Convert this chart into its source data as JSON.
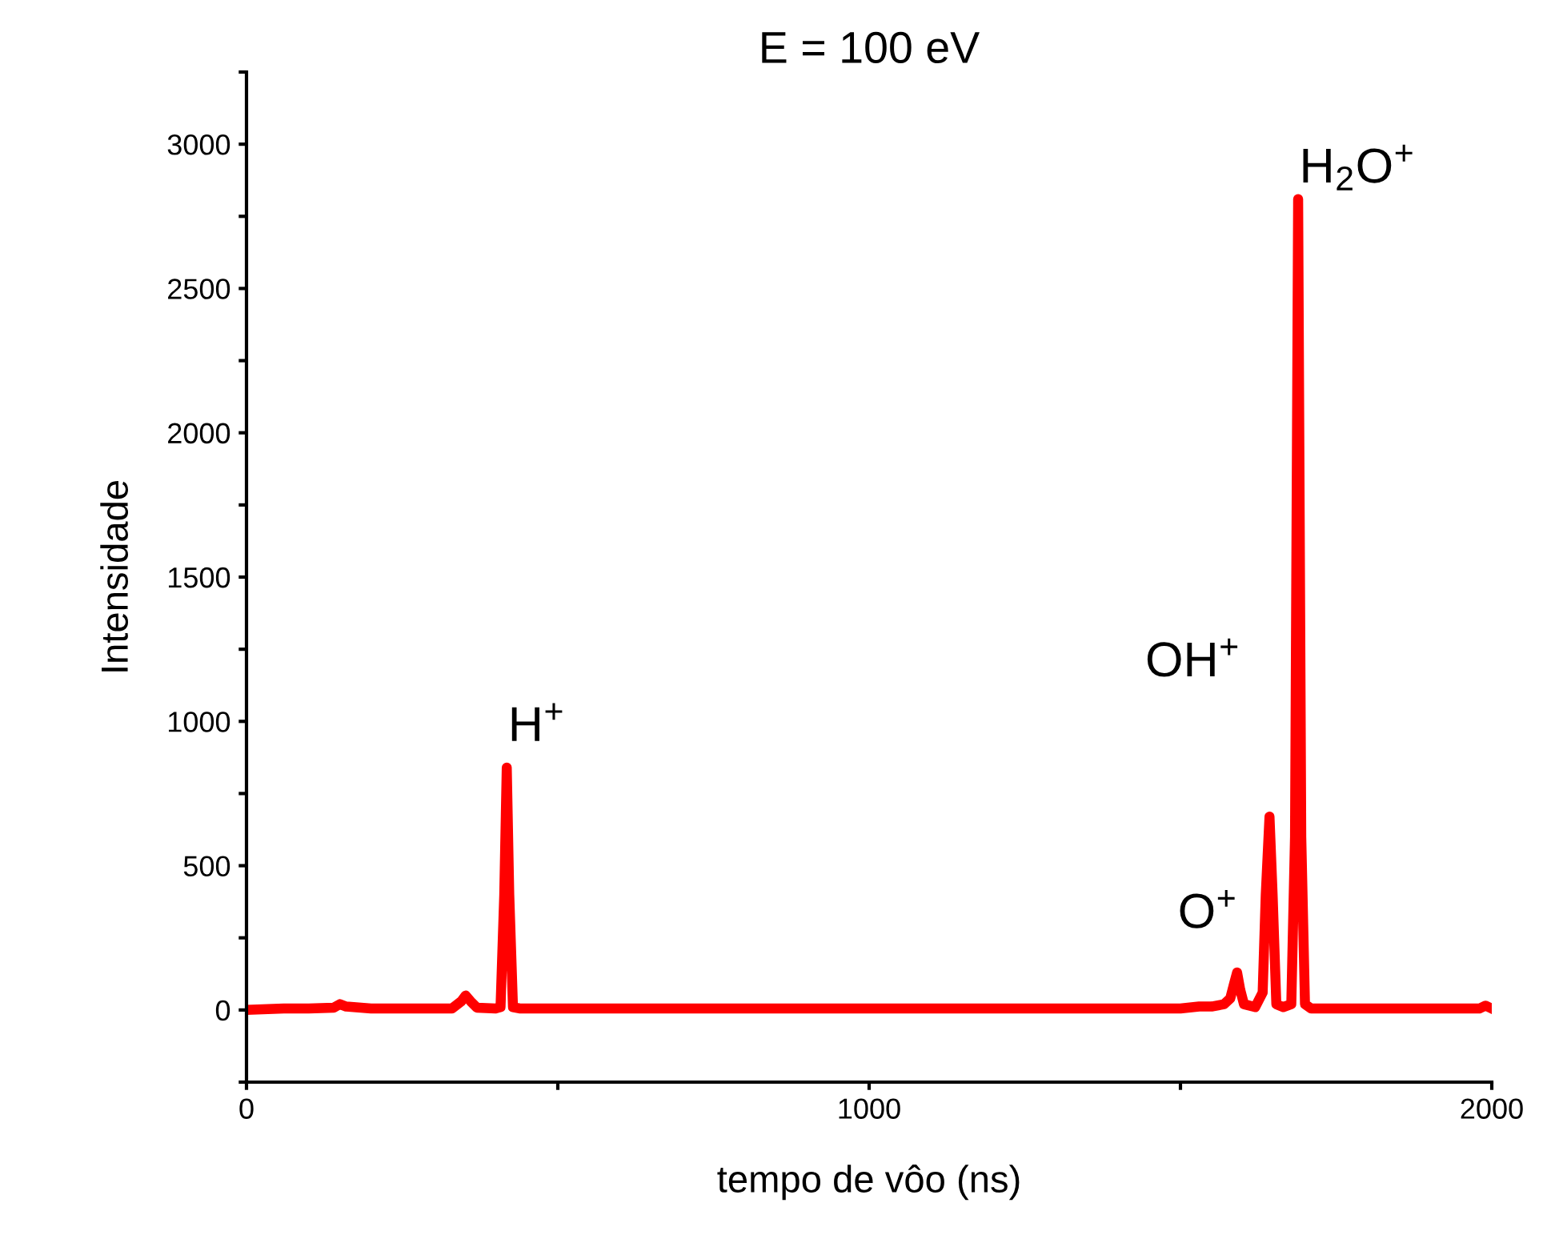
{
  "chart_data": {
    "type": "line",
    "title": "E = 100 eV",
    "xlabel": "tempo de vôo (ns)",
    "ylabel": "Intensidade",
    "series": [
      {
        "color": "#ff0000",
        "x": [
          0,
          60,
          100,
          140,
          150,
          160,
          200,
          260,
          330,
          345,
          352,
          360,
          370,
          400,
          408,
          414,
          418,
          422,
          428,
          440,
          600,
          800,
          1000,
          1200,
          1400,
          1500,
          1530,
          1550,
          1570,
          1580,
          1586,
          1591,
          1596,
          1602,
          1620,
          1632,
          1637,
          1643,
          1648,
          1654,
          1665,
          1678,
          1684,
          1689,
          1694,
          1700,
          1710,
          1800,
          1900,
          1980,
          1990,
          2000
        ],
        "values": [
          0,
          5,
          5,
          8,
          20,
          12,
          5,
          5,
          5,
          30,
          50,
          30,
          8,
          5,
          10,
          400,
          840,
          400,
          10,
          5,
          5,
          5,
          5,
          5,
          5,
          5,
          12,
          12,
          20,
          40,
          90,
          130,
          70,
          20,
          10,
          60,
          400,
          670,
          400,
          20,
          10,
          20,
          600,
          2810,
          600,
          20,
          5,
          5,
          5,
          5,
          15,
          5
        ]
      }
    ],
    "xlim": [
      0,
      2000
    ],
    "ylim": [
      -250,
      3250
    ],
    "xticks": [
      0,
      {
        "value": 500,
        "label": null
      },
      1000,
      {
        "value": 1500,
        "label": null
      },
      2000
    ],
    "yticks": [
      {
        "value": -250,
        "label": null
      },
      0,
      {
        "value": 250,
        "label": null
      },
      500,
      {
        "value": 750,
        "label": null
      },
      1000,
      {
        "value": 1250,
        "label": null
      },
      1500,
      {
        "value": 1750,
        "label": null
      },
      2000,
      {
        "value": 2250,
        "label": null
      },
      2500,
      {
        "value": 2750,
        "label": null
      },
      3000,
      {
        "value": 3250,
        "label": null
      }
    ],
    "annotations": [
      "H$^{+}$",
      "O$^{+}$",
      "OH$^{+}$",
      "H$_{2}$O$^{+}$"
    ],
    "grid": false,
    "legend": false,
    "marker": "none",
    "line_style": "solid"
  }
}
